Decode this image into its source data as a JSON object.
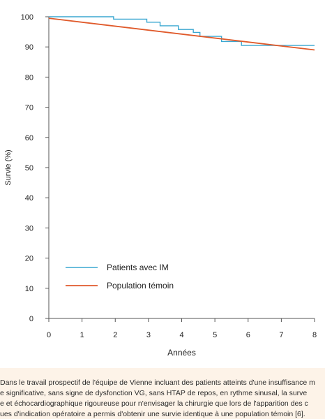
{
  "chart_data": {
    "type": "line",
    "title": "",
    "xlabel": "Années",
    "ylabel": "Survie (%)",
    "xlim": [
      0,
      8
    ],
    "ylim": [
      0,
      100
    ],
    "xticks": [
      0,
      1,
      2,
      3,
      4,
      5,
      6,
      7,
      8
    ],
    "yticks": [
      0,
      10,
      20,
      30,
      40,
      50,
      60,
      70,
      80,
      90,
      100
    ],
    "grid": false,
    "legend_position": "bottom-left",
    "series": [
      {
        "name": "Patients avec IM",
        "color": "#3aa7d1",
        "step": true,
        "x": [
          0,
          1.95,
          2.95,
          3.35,
          3.9,
          4.35,
          4.55,
          5.2,
          5.8,
          8.0
        ],
        "y": [
          100,
          99.2,
          98.2,
          97.0,
          95.8,
          94.8,
          93.5,
          91.8,
          90.5,
          90.5
        ]
      },
      {
        "name": "Population témoin",
        "color": "#e05a2b",
        "step": false,
        "x": [
          0,
          8
        ],
        "y": [
          99.5,
          89.0
        ]
      }
    ]
  },
  "caption": {
    "lines": [
      "Dans le travail prospectif de l'équipe de Vienne incluant des patients atteints d'une insuffisance m",
      "e significative, sans signe de dysfonction VG, sans HTAP de repos, en rythme sinusal, la surve",
      "e et échocardiographique rigoureuse pour n'envisager la chirurgie que lors de l'apparition des c",
      "ues d'indication opératoire a permis d'obtenir une survie identique à une population témoin [6]."
    ]
  }
}
